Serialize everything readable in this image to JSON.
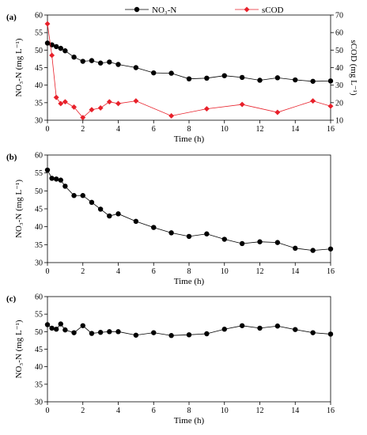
{
  "legend": {
    "items": [
      {
        "label": "NO₃-N",
        "color": "#000000",
        "marker": "circle"
      },
      {
        "label": "sCOD",
        "color": "#e8202a",
        "marker": "diamond"
      }
    ]
  },
  "chart_data": [
    {
      "panel": "(a)",
      "type": "line",
      "xlabel": "Time (h)",
      "ylabel": "NO₃-N (mg L⁻¹)",
      "ylabel_right": "sCOD (mg L⁻¹)",
      "xlim": [
        0,
        16
      ],
      "ylim": [
        30,
        60
      ],
      "ylim_right": [
        10,
        70
      ],
      "xticks": [
        0,
        2,
        4,
        6,
        8,
        10,
        12,
        14,
        16
      ],
      "yticks": [
        30,
        35,
        40,
        45,
        50,
        55,
        60
      ],
      "yticks_right": [
        10,
        20,
        30,
        40,
        50,
        60,
        70
      ],
      "grid": false,
      "legend_position": "top",
      "series": [
        {
          "name": "NO₃-N",
          "axis": "left",
          "color": "#000000",
          "marker": "circle",
          "x": [
            0,
            0.25,
            0.5,
            0.75,
            1,
            1.5,
            2,
            2.5,
            3,
            3.5,
            4,
            5,
            6,
            7,
            8,
            9,
            10,
            11,
            12,
            13,
            14,
            15,
            16
          ],
          "y": [
            52.0,
            51.5,
            51.0,
            50.5,
            49.8,
            48.0,
            46.8,
            47.0,
            46.3,
            46.6,
            45.9,
            45.0,
            43.5,
            43.4,
            41.8,
            42.0,
            42.7,
            42.2,
            41.4,
            42.1,
            41.5,
            41.1,
            41.2
          ]
        },
        {
          "name": "sCOD",
          "axis": "right",
          "color": "#e8202a",
          "marker": "diamond",
          "x": [
            0,
            0.25,
            0.5,
            0.75,
            1,
            1.5,
            2,
            2.5,
            3,
            3.5,
            4,
            5,
            7,
            9,
            11,
            13,
            15,
            16
          ],
          "y": [
            65,
            47,
            23,
            19.5,
            20.5,
            17.5,
            11.5,
            16,
            17,
            20.5,
            19.5,
            21,
            12.5,
            16.5,
            19,
            14.5,
            21,
            18
          ]
        }
      ]
    },
    {
      "panel": "(b)",
      "type": "line",
      "xlabel": "Time (h)",
      "ylabel": "NO₃-N (mg L⁻¹)",
      "xlim": [
        0,
        16
      ],
      "ylim": [
        30,
        60
      ],
      "xticks": [
        0,
        2,
        4,
        6,
        8,
        10,
        12,
        14,
        16
      ],
      "yticks": [
        30,
        35,
        40,
        45,
        50,
        55,
        60
      ],
      "grid": false,
      "series": [
        {
          "name": "NO₃-N",
          "color": "#000000",
          "marker": "circle",
          "x": [
            0,
            0.25,
            0.5,
            0.75,
            1,
            1.5,
            2,
            2.5,
            3,
            3.5,
            4,
            5,
            6,
            7,
            8,
            9,
            10,
            11,
            12,
            13,
            14,
            15,
            16
          ],
          "y": [
            55.8,
            53.5,
            53.3,
            53.0,
            51.3,
            48.7,
            48.7,
            46.8,
            44.9,
            43.0,
            43.6,
            41.5,
            39.8,
            38.3,
            37.3,
            38.0,
            36.5,
            35.3,
            35.8,
            35.6,
            34.0,
            33.4,
            33.8
          ]
        }
      ]
    },
    {
      "panel": "(c)",
      "type": "line",
      "xlabel": "Time (h)",
      "ylabel": "NO₃-N (mg L⁻¹)",
      "xlim": [
        0,
        16
      ],
      "ylim": [
        30,
        60
      ],
      "xticks": [
        0,
        2,
        4,
        6,
        8,
        10,
        12,
        14,
        16
      ],
      "yticks": [
        30,
        35,
        40,
        45,
        50,
        55,
        60
      ],
      "grid": false,
      "series": [
        {
          "name": "NO₃-N",
          "color": "#000000",
          "marker": "circle",
          "x": [
            0,
            0.25,
            0.5,
            0.75,
            1,
            1.5,
            2,
            2.5,
            3,
            3.5,
            4,
            5,
            6,
            7,
            8,
            9,
            10,
            11,
            12,
            13,
            14,
            15,
            16
          ],
          "y": [
            52.0,
            51.0,
            50.7,
            52.2,
            50.5,
            49.7,
            51.7,
            49.5,
            49.8,
            50.0,
            50.0,
            49.0,
            49.7,
            48.9,
            49.1,
            49.4,
            50.7,
            51.7,
            51.0,
            51.6,
            50.6,
            49.7,
            49.3
          ]
        }
      ]
    }
  ]
}
